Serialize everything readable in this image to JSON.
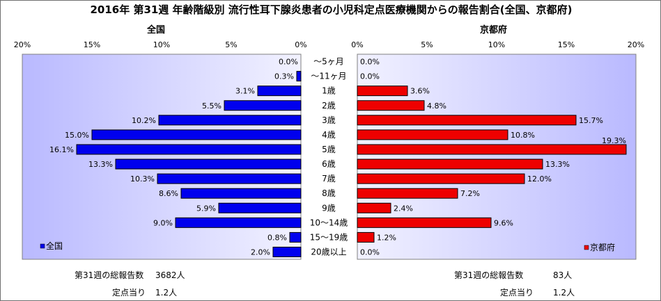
{
  "title": "2016年 第31週 年齢階級別 流行性耳下腺炎患者の小児科定点医療機関からの報告割合(全国、京都府)",
  "chart_data": {
    "type": "bar",
    "categories": [
      "〜5ヶ月",
      "〜11ヶ月",
      "1歳",
      "2歳",
      "3歳",
      "4歳",
      "5歳",
      "6歳",
      "7歳",
      "8歳",
      "9歳",
      "10〜14歳",
      "15〜19歳",
      "20歳以上"
    ],
    "xlim": [
      0,
      20
    ],
    "ticks": [
      20,
      15,
      10,
      5,
      0
    ],
    "tick_suffix": "%",
    "series": [
      {
        "name": "全国",
        "panel_title": "全国",
        "color": "#0000ee",
        "values": [
          0.0,
          0.3,
          3.1,
          5.5,
          10.2,
          15.0,
          16.1,
          13.3,
          10.3,
          8.6,
          5.9,
          9.0,
          0.8,
          2.0
        ],
        "labels": [
          "0.0%",
          "0.3%",
          "3.1%",
          "5.5%",
          "10.2%",
          "15.0%",
          "16.1%",
          "13.3%",
          "10.3%",
          "8.6%",
          "5.9%",
          "9.0%",
          "0.8%",
          "2.0%"
        ]
      },
      {
        "name": "京都府",
        "panel_title": "京都府",
        "color": "#ee0000",
        "values": [
          0.0,
          0.0,
          3.6,
          4.8,
          15.7,
          10.8,
          19.3,
          13.3,
          12.0,
          7.2,
          2.4,
          9.6,
          1.2,
          0.0
        ],
        "labels": [
          "0.0%",
          "0.0%",
          "3.6%",
          "4.8%",
          "15.7%",
          "10.8%",
          "19.3%",
          "13.3%",
          "12.0%",
          "7.2%",
          "2.4%",
          "9.6%",
          "1.2%",
          "0.0%"
        ]
      }
    ],
    "grid": false,
    "legend": "bottom-left (全国), bottom-right (京都府)"
  },
  "footer": {
    "national": {
      "total_label": "第31週の総報告数",
      "total_value": "3682人",
      "per_label": "定点当り",
      "per_value": "1.2人"
    },
    "kyoto": {
      "total_label": "第31週の総報告数",
      "total_value": "83人",
      "per_label": "定点当り",
      "per_value": "1.2人"
    }
  }
}
